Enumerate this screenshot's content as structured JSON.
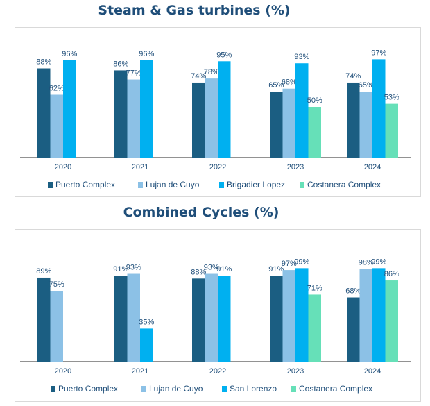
{
  "chart_data": [
    {
      "type": "bar",
      "title": "Steam & Gas turbines (%)",
      "categories": [
        "2020",
        "2021",
        "2022",
        "2023",
        "2024"
      ],
      "series": [
        {
          "name": "Puerto Complex",
          "color": "#1b5e82",
          "values": [
            88,
            86,
            74,
            65,
            74
          ]
        },
        {
          "name": "Lujan de Cuyo",
          "color": "#8cc1e6",
          "values": [
            62,
            77,
            78,
            68,
            65
          ]
        },
        {
          "name": "Brigadier Lopez",
          "color": "#00b0f0",
          "values": [
            96,
            96,
            95,
            93,
            97
          ]
        },
        {
          "name": "Costanera Complex",
          "color": "#66e0b8",
          "values": [
            null,
            null,
            null,
            50,
            53
          ]
        }
      ],
      "labels": [
        [
          "88%",
          "86%",
          "74%",
          "65%",
          "74%"
        ],
        [
          "62%",
          "77%",
          "78%",
          "68%",
          "65%"
        ],
        [
          "96%",
          "96%",
          "95%",
          "93%",
          "97%"
        ],
        [
          null,
          null,
          null,
          "50%",
          "53%"
        ]
      ],
      "ylim": [
        0,
        100
      ],
      "xlabel": "",
      "ylabel": "",
      "legend": "bottom"
    },
    {
      "type": "bar",
      "title": "Combined Cycles (%)",
      "categories": [
        "2020",
        "2021",
        "2022",
        "2023",
        "2024"
      ],
      "series": [
        {
          "name": "Puerto Complex",
          "color": "#1b5e82",
          "values": [
            89,
            91,
            88,
            91,
            68
          ]
        },
        {
          "name": "Lujan de Cuyo",
          "color": "#8cc1e6",
          "values": [
            75,
            93,
            93,
            97,
            98
          ]
        },
        {
          "name": "San Lorenzo",
          "color": "#00b0f0",
          "values": [
            null,
            35,
            91,
            99,
            99
          ]
        },
        {
          "name": "Costanera Complex",
          "color": "#66e0b8",
          "values": [
            null,
            null,
            null,
            71,
            86
          ]
        }
      ],
      "labels": [
        [
          "89%",
          "91%",
          "88%",
          "91%",
          "68%"
        ],
        [
          "75%",
          "93%",
          "93%",
          "97%",
          "98%"
        ],
        [
          null,
          "35%",
          "91%",
          "99%",
          "99%"
        ],
        [
          null,
          null,
          null,
          "71%",
          "86%"
        ]
      ],
      "ylim": [
        0,
        100
      ],
      "xlabel": "",
      "ylabel": "",
      "legend": "bottom"
    }
  ]
}
